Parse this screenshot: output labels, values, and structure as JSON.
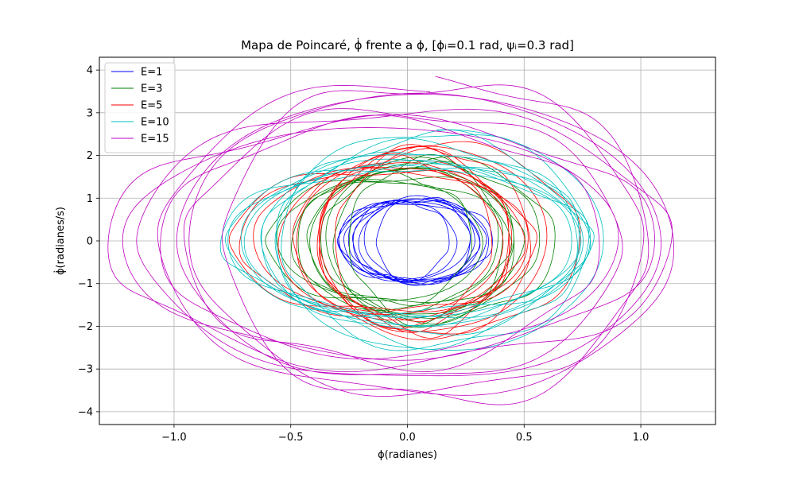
{
  "chart_data": {
    "type": "line",
    "title": "Mapa de Poincaré, ϕ̇ frente a ϕ, [ϕᵢ=0.1 rad, ψᵢ=0.3 rad]",
    "xlabel": "ϕ(radianes)",
    "ylabel": "ϕ̇(radianes/s)",
    "xlim": [
      -1.32,
      1.32
    ],
    "ylim": [
      -4.3,
      4.3
    ],
    "xticks": [
      -1.0,
      -0.5,
      0.0,
      0.5,
      1.0
    ],
    "xtick_labels": [
      "−1.0",
      "−0.5",
      "0.0",
      "0.5",
      "1.0"
    ],
    "yticks": [
      -4,
      -3,
      -2,
      -1,
      0,
      1,
      2,
      3,
      4
    ],
    "ytick_labels": [
      "−4",
      "−3",
      "−2",
      "−1",
      "0",
      "1",
      "2",
      "3",
      "4"
    ],
    "grid": true,
    "legend_position": "top-left",
    "series": [
      {
        "name": "E=1",
        "color": "#0000ff",
        "center": [
          0.02,
          0.0
        ],
        "amp_x": 0.26,
        "amp_y": 0.95,
        "drift_x": 0.06,
        "drift_y": 0.05,
        "wx": 1.0,
        "wy": 1.0,
        "wmod": 0.13,
        "turns": 10
      },
      {
        "name": "E=3",
        "color": "#008000",
        "center": [
          0.0,
          0.0
        ],
        "amp_x": 0.44,
        "amp_y": 1.65,
        "drift_x": 0.11,
        "drift_y": 0.25,
        "wx": 1.0,
        "wy": 1.0,
        "wmod": 0.11,
        "turns": 10
      },
      {
        "name": "E=5",
        "color": "#ff0000",
        "center": [
          0.0,
          0.0
        ],
        "amp_x": 0.52,
        "amp_y": 1.95,
        "drift_x": 0.14,
        "drift_y": 0.28,
        "wx": 1.0,
        "wy": 1.0,
        "wmod": 0.09,
        "turns": 11
      },
      {
        "name": "E=10",
        "color": "#00bfbf",
        "center": [
          0.06,
          0.0
        ],
        "amp_x": 0.72,
        "amp_y": 2.15,
        "drift_x": 0.08,
        "drift_y": 0.45,
        "wx": 1.0,
        "wy": 1.0,
        "wmod": 0.07,
        "turns": 10
      },
      {
        "name": "E=15",
        "color": "#bf00bf",
        "center": [
          0.0,
          0.0
        ],
        "amp_x": 1.05,
        "amp_y": 3.25,
        "drift_x": 0.15,
        "drift_y": 0.6,
        "wx": 1.0,
        "wy": 1.0,
        "wmod": 0.1,
        "turns": 9
      }
    ]
  }
}
